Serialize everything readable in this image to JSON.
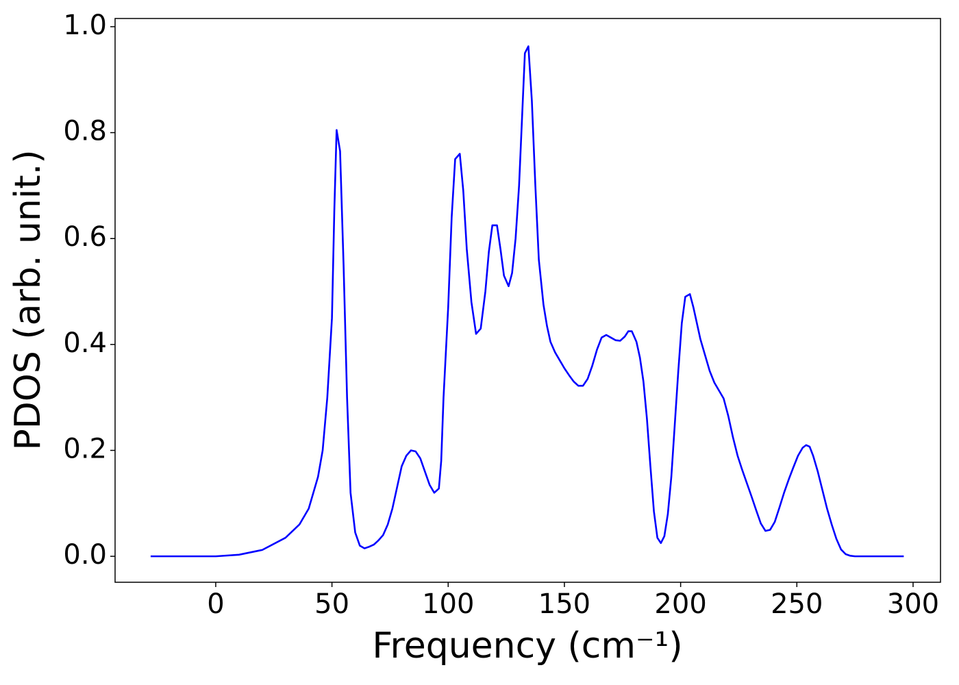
{
  "chart_data": {
    "type": "line",
    "xlabel": "Frequency (cm⁻¹)",
    "ylabel": "PDOS (arb. unit.)",
    "x": [
      -28,
      0,
      10,
      20,
      30,
      36,
      40,
      44,
      46,
      48,
      50,
      51,
      52,
      53.5,
      55,
      56.5,
      58,
      60,
      62,
      64,
      66,
      68,
      70,
      72,
      74,
      76,
      78,
      80,
      82,
      84,
      86,
      88,
      90,
      92,
      94,
      96,
      97,
      98,
      100,
      101.5,
      103,
      105,
      106.5,
      108,
      110,
      112,
      114,
      116,
      117.5,
      119,
      121,
      122.5,
      124,
      126,
      127.5,
      129,
      130.5,
      132,
      133,
      134.5,
      136,
      137.5,
      139,
      141,
      142.5,
      144,
      146,
      148,
      150,
      152,
      154,
      156,
      158,
      160,
      162,
      164,
      166,
      168,
      170,
      172,
      174,
      176,
      177.5,
      179,
      181,
      182.5,
      184,
      185.5,
      187,
      188.5,
      190,
      191.5,
      193,
      194.5,
      196,
      197.5,
      199,
      200.5,
      202,
      204,
      205.5,
      207,
      208.5,
      210.5,
      212.5,
      214.5,
      216.5,
      218.5,
      220.5,
      222.5,
      224.5,
      226.5,
      228.5,
      230.5,
      232.5,
      234.5,
      236.5,
      238.5,
      240.5,
      242.5,
      244.5,
      246.5,
      248.5,
      250.5,
      252.5,
      254,
      255.5,
      257,
      259,
      261,
      263,
      265,
      267,
      269,
      271,
      273,
      275,
      296
    ],
    "series": [
      {
        "name": "PDOS",
        "color": "#0000ff",
        "values": [
          0,
          0,
          0.003,
          0.012,
          0.035,
          0.06,
          0.09,
          0.15,
          0.2,
          0.3,
          0.45,
          0.65,
          0.805,
          0.765,
          0.55,
          0.3,
          0.12,
          0.045,
          0.02,
          0.015,
          0.018,
          0.022,
          0.03,
          0.04,
          0.06,
          0.09,
          0.13,
          0.17,
          0.19,
          0.2,
          0.198,
          0.185,
          0.16,
          0.135,
          0.12,
          0.128,
          0.18,
          0.3,
          0.47,
          0.64,
          0.75,
          0.76,
          0.69,
          0.58,
          0.48,
          0.42,
          0.43,
          0.5,
          0.575,
          0.625,
          0.625,
          0.58,
          0.53,
          0.51,
          0.535,
          0.6,
          0.7,
          0.85,
          0.95,
          0.963,
          0.86,
          0.7,
          0.56,
          0.475,
          0.435,
          0.405,
          0.385,
          0.37,
          0.355,
          0.342,
          0.33,
          0.322,
          0.322,
          0.335,
          0.36,
          0.39,
          0.413,
          0.418,
          0.413,
          0.408,
          0.407,
          0.415,
          0.425,
          0.425,
          0.405,
          0.375,
          0.33,
          0.26,
          0.17,
          0.085,
          0.035,
          0.025,
          0.038,
          0.08,
          0.15,
          0.25,
          0.35,
          0.44,
          0.49,
          0.495,
          0.47,
          0.44,
          0.41,
          0.38,
          0.35,
          0.328,
          0.313,
          0.298,
          0.265,
          0.225,
          0.19,
          0.163,
          0.138,
          0.113,
          0.087,
          0.062,
          0.048,
          0.05,
          0.065,
          0.092,
          0.12,
          0.145,
          0.168,
          0.19,
          0.205,
          0.21,
          0.207,
          0.19,
          0.16,
          0.125,
          0.09,
          0.06,
          0.033,
          0.013,
          0.004,
          0.001,
          0,
          0
        ]
      }
    ],
    "xlim": [
      -43.3,
      311.8
    ],
    "ylim": [
      -0.049,
      1.0155
    ],
    "xticks": [
      0,
      50,
      100,
      150,
      200,
      250,
      300
    ],
    "yticks": [
      {
        "value": 0,
        "label": "0.0"
      },
      0.2,
      0.4,
      0.6,
      0.8,
      {
        "value": 1,
        "label": "1.0"
      }
    ],
    "grid": false
  }
}
